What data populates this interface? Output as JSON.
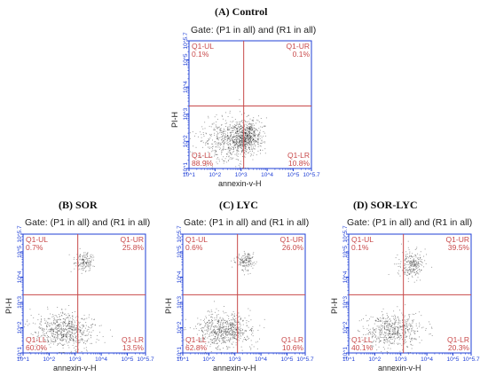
{
  "panels": [
    {
      "title": "(A) Control",
      "gate": "Gate: (P1 in all) and (R1 in all)",
      "ylabel": "PI-H",
      "xlabel": "annexin-v-H"
    },
    {
      "title": "(B) SOR",
      "gate": "Gate: (P1 in all) and (R1 in all)",
      "ylabel": "PI-H",
      "xlabel": "annexin-v-H"
    },
    {
      "title": "(C) LYC",
      "gate": "Gate: (P1 in all) and (R1 in all)",
      "ylabel": "PI-H",
      "xlabel": "annexin-v-H"
    },
    {
      "title": "(D) SOR-LYC",
      "gate": "Gate: (P1 in all) and (R1 in all)",
      "ylabel": "PI-H",
      "xlabel": "annexin-v-H"
    }
  ],
  "chart_data": [
    {
      "type": "scatter",
      "title": "(A) Control",
      "xlabel": "annexin-v-H",
      "ylabel": "PI-H",
      "xscale": "log",
      "yscale": "log",
      "xlim": [
        1,
        5.7
      ],
      "ylim": [
        1,
        5.7
      ],
      "x_ticks": [
        "10^1",
        "10^2",
        "10^3",
        "10^4",
        "10^5",
        "10^5.7"
      ],
      "y_ticks": [
        "10^1",
        "10^2",
        "10^3",
        "10^4",
        "10^5",
        "10^5.7"
      ],
      "quadrant_gate": {
        "x": 3.1,
        "y": 3.3
      },
      "quadrants": [
        {
          "name": "Q1-UL",
          "percent": "0.1%"
        },
        {
          "name": "Q1-UR",
          "percent": "0.1%"
        },
        {
          "name": "Q1-LL",
          "percent": "88.9%"
        },
        {
          "name": "Q1-LR",
          "percent": "10.8%"
        }
      ],
      "clusters": [
        {
          "x": 3.15,
          "y": 2.2,
          "sx": 0.3,
          "sy": 0.28,
          "n": 650
        },
        {
          "x": 2.4,
          "y": 2.0,
          "sx": 0.55,
          "sy": 0.45,
          "n": 450
        }
      ]
    },
    {
      "type": "scatter",
      "title": "(B) SOR",
      "xlabel": "annexin-v-H",
      "ylabel": "PI-H",
      "xscale": "log",
      "yscale": "log",
      "xlim": [
        1,
        5.7
      ],
      "ylim": [
        1,
        5.7
      ],
      "x_ticks": [
        "10^1",
        "10^2",
        "10^3",
        "10^4",
        "10^5",
        "10^5.7"
      ],
      "y_ticks": [
        "10^1",
        "10^2",
        "10^3",
        "10^4",
        "10^5",
        "10^5.7"
      ],
      "quadrant_gate": {
        "x": 3.1,
        "y": 3.3
      },
      "quadrants": [
        {
          "name": "Q1-UL",
          "percent": "0.7%"
        },
        {
          "name": "Q1-UR",
          "percent": "25.8%"
        },
        {
          "name": "Q1-LL",
          "percent": "60.0%"
        },
        {
          "name": "Q1-LR",
          "percent": "13.5%"
        }
      ],
      "clusters": [
        {
          "x": 2.6,
          "y": 1.9,
          "sx": 0.55,
          "sy": 0.35,
          "n": 650
        },
        {
          "x": 3.35,
          "y": 4.6,
          "sx": 0.18,
          "sy": 0.18,
          "n": 150
        }
      ]
    },
    {
      "type": "scatter",
      "title": "(C) LYC",
      "xlabel": "annexin-v-H",
      "ylabel": "PI-H",
      "xscale": "log",
      "yscale": "log",
      "xlim": [
        1,
        5.7
      ],
      "ylim": [
        1,
        5.7
      ],
      "x_ticks": [
        "10^1",
        "10^2",
        "10^3",
        "10^4",
        "10^5",
        "10^5.7"
      ],
      "y_ticks": [
        "10^1",
        "10^2",
        "10^3",
        "10^4",
        "10^5",
        "10^5.7"
      ],
      "quadrant_gate": {
        "x": 3.1,
        "y": 3.3
      },
      "quadrants": [
        {
          "name": "Q1-UL",
          "percent": "0.6%"
        },
        {
          "name": "Q1-UR",
          "percent": "26.0%"
        },
        {
          "name": "Q1-LL",
          "percent": "62.8%"
        },
        {
          "name": "Q1-LR",
          "percent": "10.6%"
        }
      ],
      "clusters": [
        {
          "x": 2.6,
          "y": 1.9,
          "sx": 0.55,
          "sy": 0.35,
          "n": 650
        },
        {
          "x": 3.4,
          "y": 4.65,
          "sx": 0.18,
          "sy": 0.18,
          "n": 150
        }
      ]
    },
    {
      "type": "scatter",
      "title": "(D) SOR-LYC",
      "xlabel": "annexin-v-H",
      "ylabel": "PI-H",
      "xscale": "log",
      "yscale": "log",
      "xlim": [
        1,
        5.7
      ],
      "ylim": [
        1,
        5.7
      ],
      "x_ticks": [
        "10^1",
        "10^2",
        "10^3",
        "10^4",
        "10^5",
        "10^5.7"
      ],
      "y_ticks": [
        "10^1",
        "10^2",
        "10^3",
        "10^4",
        "10^5",
        "10^5.7"
      ],
      "quadrant_gate": {
        "x": 3.1,
        "y": 3.3
      },
      "quadrants": [
        {
          "name": "Q1-UL",
          "percent": "0.1%"
        },
        {
          "name": "Q1-UR",
          "percent": "39.5%"
        },
        {
          "name": "Q1-LL",
          "percent": "40.1%"
        },
        {
          "name": "Q1-LR",
          "percent": "20.3%"
        }
      ],
      "clusters": [
        {
          "x": 2.7,
          "y": 1.9,
          "sx": 0.55,
          "sy": 0.35,
          "n": 550
        },
        {
          "x": 3.4,
          "y": 4.5,
          "sx": 0.25,
          "sy": 0.28,
          "n": 240
        }
      ]
    }
  ],
  "colors": {
    "frame": "#1f3fd6",
    "gate_line": "#c8494a",
    "quadrant_text": "#c8494a",
    "tick_text": "#1f3fd6",
    "dot": "#2a2a2a"
  }
}
